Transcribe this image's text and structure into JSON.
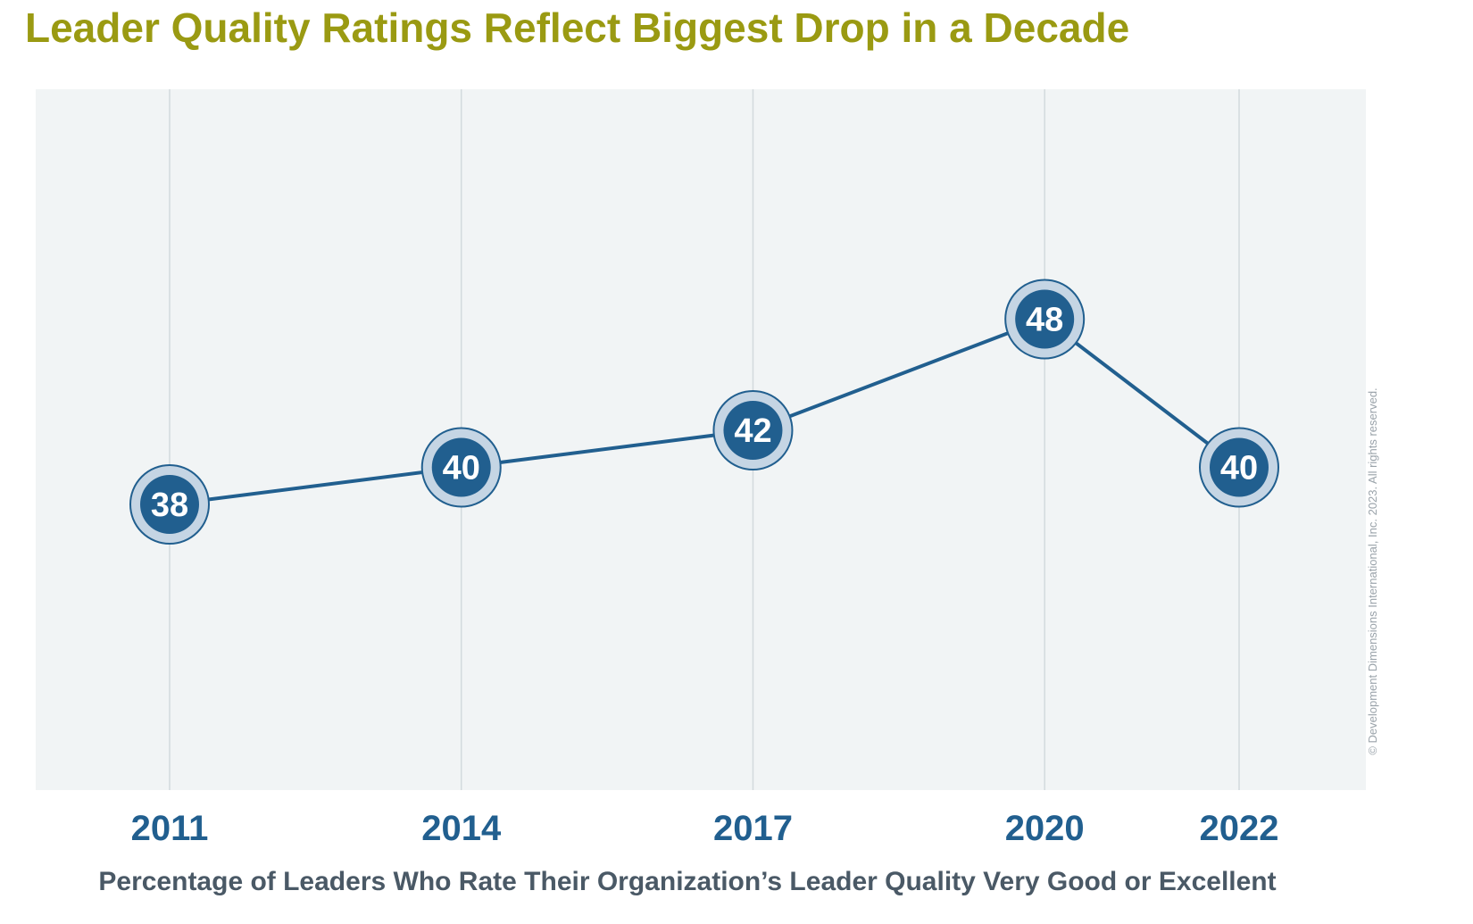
{
  "title": "Leader Quality Ratings Reflect Biggest Drop in a Decade",
  "subtitle": "Percentage of Leaders Who Rate Their Organization’s Leader Quality Very Good or Excellent",
  "copyright": "© Development Dimensions International, Inc. 2023. All rights reserved.",
  "colors": {
    "title": "#9a9a12",
    "series": "#215f8f",
    "marker_ring": "#c5d5e4",
    "plot_background": "#f1f4f5",
    "gridline": "#d3dadd",
    "tick_label": "#215f8f",
    "subtitle": "#4a5966"
  },
  "chart_data": {
    "type": "line",
    "title": "Leader Quality Ratings Reflect Biggest Drop in a Decade",
    "xlabel": "Percentage of Leaders Who Rate Their Organization’s Leader Quality Very Good or Excellent",
    "ylabel": "",
    "x": [
      "2011",
      "2014",
      "2017",
      "2020",
      "2022"
    ],
    "series": [
      {
        "values": [
          38,
          40,
          42,
          48,
          40
        ]
      }
    ],
    "data_labels": [
      "38",
      "40",
      "42",
      "48",
      "40"
    ],
    "grid": "vertical",
    "legend": "none",
    "x_scale": "linear-years"
  }
}
